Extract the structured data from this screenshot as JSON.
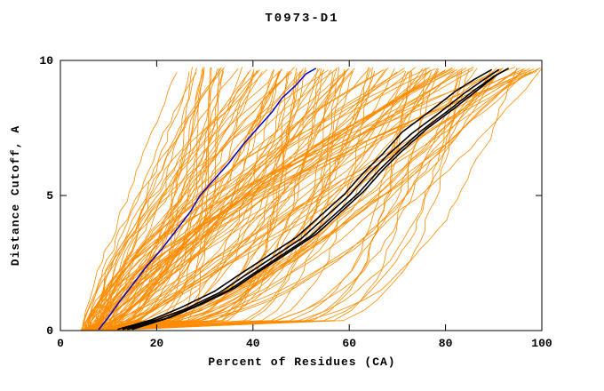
{
  "chart_data": {
    "type": "line",
    "title": "T0973-D1",
    "xlabel": "Percent of Residues (CA)",
    "ylabel": "Distance Cutoff, A",
    "xlim": [
      0,
      100
    ],
    "ylim": [
      0,
      10
    ],
    "x_ticks": [
      0,
      20,
      40,
      60,
      80,
      100
    ],
    "y_ticks": [
      0,
      5,
      10
    ],
    "grid": false,
    "legend": "none",
    "colors": {
      "ensemble": "#ff8c00",
      "highlight": "#000000",
      "reference": "#0000cd",
      "axis": "#000000",
      "background": "#ffffff"
    },
    "series": [
      {
        "name": "blue-reference-curve",
        "color": "#0000cd",
        "points": [
          [
            8,
            0.05
          ],
          [
            10,
            0.5
          ],
          [
            12,
            1.0
          ],
          [
            15,
            1.7
          ],
          [
            18,
            2.4
          ],
          [
            21,
            3.0
          ],
          [
            24,
            3.7
          ],
          [
            27,
            4.4
          ],
          [
            29,
            5.0
          ],
          [
            32,
            5.6
          ],
          [
            35,
            6.2
          ],
          [
            38,
            6.9
          ],
          [
            41,
            7.5
          ],
          [
            44,
            8.1
          ],
          [
            46,
            8.6
          ],
          [
            49,
            9.1
          ],
          [
            51,
            9.5
          ],
          [
            53,
            9.7
          ]
        ]
      },
      {
        "name": "black-highlight-curves",
        "color": "#000000",
        "curves": [
          [
            [
              13,
              0.05
            ],
            [
              20,
              0.4
            ],
            [
              26,
              0.8
            ],
            [
              33,
              1.4
            ],
            [
              38,
              2.0
            ],
            [
              44,
              2.7
            ],
            [
              50,
              3.4
            ],
            [
              55,
              4.2
            ],
            [
              60,
              5.0
            ],
            [
              64,
              5.8
            ],
            [
              68,
              6.5
            ],
            [
              73,
              7.3
            ],
            [
              79,
              8.1
            ],
            [
              84,
              8.8
            ],
            [
              88,
              9.3
            ],
            [
              91,
              9.65
            ]
          ],
          [
            [
              14,
              0.05
            ],
            [
              22,
              0.45
            ],
            [
              28,
              0.9
            ],
            [
              35,
              1.5
            ],
            [
              40,
              2.1
            ],
            [
              46,
              2.8
            ],
            [
              52,
              3.5
            ],
            [
              57,
              4.3
            ],
            [
              62,
              5.1
            ],
            [
              66,
              5.9
            ],
            [
              70,
              6.6
            ],
            [
              75,
              7.4
            ],
            [
              81,
              8.2
            ],
            [
              86,
              8.9
            ],
            [
              90,
              9.4
            ],
            [
              92.5,
              9.65
            ]
          ],
          [
            [
              12,
              0.05
            ],
            [
              19,
              0.4
            ],
            [
              25,
              0.85
            ],
            [
              32,
              1.45
            ],
            [
              37,
              2.05
            ],
            [
              43,
              2.75
            ],
            [
              49,
              3.45
            ],
            [
              54,
              4.25
            ],
            [
              59,
              5.05
            ],
            [
              63,
              5.85
            ],
            [
              67,
              6.55
            ],
            [
              71,
              7.35
            ],
            [
              77,
              8.15
            ],
            [
              82,
              8.85
            ],
            [
              86,
              9.3
            ],
            [
              89.5,
              9.65
            ]
          ],
          [
            [
              15,
              0.05
            ],
            [
              23,
              0.5
            ],
            [
              29,
              0.95
            ],
            [
              36,
              1.55
            ],
            [
              41,
              2.15
            ],
            [
              47,
              2.85
            ],
            [
              53,
              3.55
            ],
            [
              58,
              4.35
            ],
            [
              63,
              5.15
            ],
            [
              67,
              5.95
            ],
            [
              71,
              6.65
            ],
            [
              76,
              7.45
            ],
            [
              82,
              8.25
            ],
            [
              87,
              8.95
            ],
            [
              90.5,
              9.45
            ],
            [
              93,
              9.7
            ]
          ]
        ]
      },
      {
        "name": "orange-model-ensemble",
        "color": "#ff8c00",
        "ensemble": {
          "count": 140,
          "seed": 20973,
          "x_start_range": [
            4,
            11
          ],
          "x_top_range": [
            24,
            100
          ],
          "x_top_bias": 0.85,
          "shape_exp_min": 0.08,
          "shape_exp_span": 1.6,
          "shape_exp_bias": 1.3,
          "y_top_min": 9.55,
          "y_top_span": 0.2,
          "jitter": 3
        }
      }
    ]
  }
}
